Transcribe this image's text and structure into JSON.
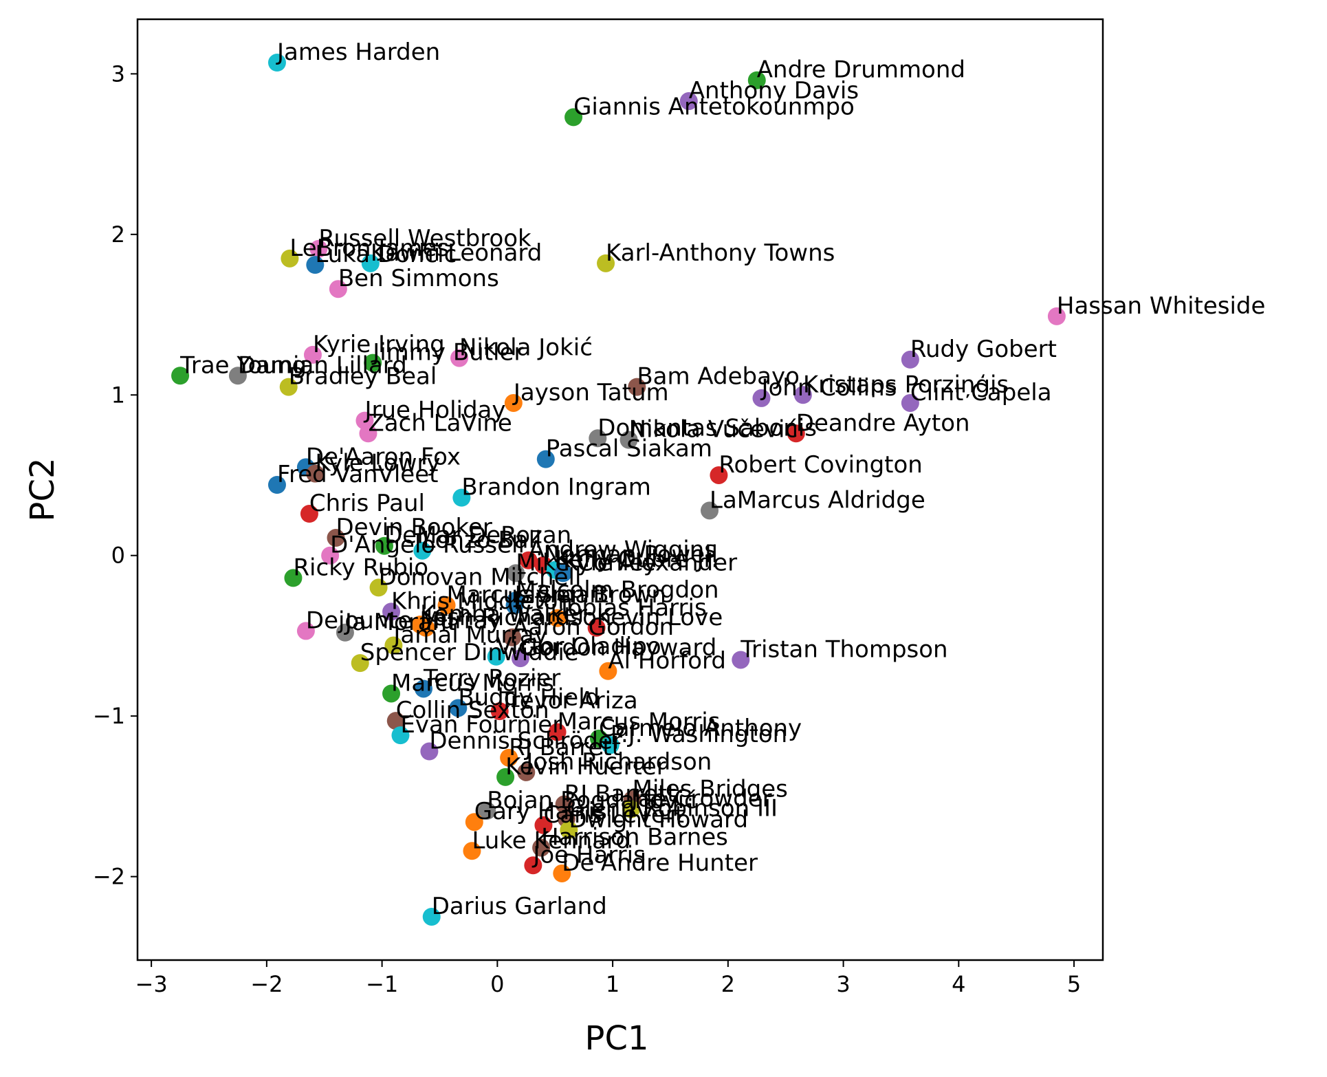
{
  "chart_data": {
    "type": "scatter",
    "xlabel": "PC1",
    "ylabel": "PC2",
    "xlim": [
      -3.12,
      5.25
    ],
    "ylim": [
      -2.52,
      3.34
    ],
    "xticks": [
      -3,
      -2,
      -1,
      0,
      1,
      2,
      3,
      4,
      5
    ],
    "yticks": [
      -2,
      -1,
      0,
      1,
      2,
      3
    ],
    "xtick_labels": [
      "−3",
      "−2",
      "−1",
      "0",
      "1",
      "2",
      "3",
      "4",
      "5"
    ],
    "ytick_labels": [
      "−2",
      "−1",
      "0",
      "1",
      "2",
      "3"
    ],
    "grid": false,
    "palette": [
      "#1f77b4",
      "#ff7f0e",
      "#2ca02c",
      "#d62728",
      "#9467bd",
      "#8c564b",
      "#e377c2",
      "#7f7f7f",
      "#bcbd22",
      "#17becf"
    ],
    "points": [
      {
        "label": "James Harden",
        "x": -1.91,
        "y": 3.07,
        "color": "#17becf"
      },
      {
        "label": "Andre Drummond",
        "x": 2.25,
        "y": 2.96,
        "color": "#2ca02c"
      },
      {
        "label": "Anthony Davis",
        "x": 1.66,
        "y": 2.83,
        "color": "#9467bd"
      },
      {
        "label": "Giannis Antetokounmpo",
        "x": 0.66,
        "y": 2.73,
        "color": "#2ca02c"
      },
      {
        "label": "Russell Westbrook",
        "x": -1.55,
        "y": 1.91,
        "color": "#e377c2"
      },
      {
        "label": "LeBron James",
        "x": -1.8,
        "y": 1.85,
        "color": "#bcbd22"
      },
      {
        "label": "Kawhi Leonard",
        "x": -1.1,
        "y": 1.82,
        "color": "#17becf"
      },
      {
        "label": "Luka Dončić",
        "x": -1.58,
        "y": 1.81,
        "color": "#1f77b4"
      },
      {
        "label": "Karl-Anthony Towns",
        "x": 0.94,
        "y": 1.82,
        "color": "#bcbd22"
      },
      {
        "label": "Ben Simmons",
        "x": -1.38,
        "y": 1.66,
        "color": "#e377c2"
      },
      {
        "label": "Hassan Whiteside",
        "x": 4.85,
        "y": 1.49,
        "color": "#e377c2"
      },
      {
        "label": "Rudy Gobert",
        "x": 3.58,
        "y": 1.22,
        "color": "#9467bd"
      },
      {
        "label": "Kyrie Irving",
        "x": -1.6,
        "y": 1.25,
        "color": "#e377c2"
      },
      {
        "label": "Nikola Jokić",
        "x": -0.33,
        "y": 1.23,
        "color": "#e377c2"
      },
      {
        "label": "Jimmy Butler",
        "x": -1.08,
        "y": 1.2,
        "color": "#2ca02c"
      },
      {
        "label": "Trae Young",
        "x": -2.75,
        "y": 1.12,
        "color": "#2ca02c"
      },
      {
        "label": "Damian Lillard",
        "x": -2.25,
        "y": 1.12,
        "color": "#7f7f7f"
      },
      {
        "label": "Bradley Beal",
        "x": -1.81,
        "y": 1.05,
        "color": "#bcbd22"
      },
      {
        "label": "Bam Adebayo",
        "x": 1.21,
        "y": 1.05,
        "color": "#8c564b"
      },
      {
        "label": "Kristaps Porziņģis",
        "x": 2.65,
        "y": 1.0,
        "color": "#9467bd"
      },
      {
        "label": "John Collins",
        "x": 2.29,
        "y": 0.98,
        "color": "#9467bd"
      },
      {
        "label": "Clint Capela",
        "x": 3.58,
        "y": 0.95,
        "color": "#9467bd"
      },
      {
        "label": "Jayson Tatum",
        "x": 0.14,
        "y": 0.95,
        "color": "#ff7f0e"
      },
      {
        "label": "Jrue Holiday",
        "x": -1.15,
        "y": 0.84,
        "color": "#e377c2"
      },
      {
        "label": "Deandre Ayton",
        "x": 2.59,
        "y": 0.76,
        "color": "#d62728"
      },
      {
        "label": "Domantas Sabonis",
        "x": 0.87,
        "y": 0.73,
        "color": "#7f7f7f"
      },
      {
        "label": "Nikola Vučević",
        "x": 1.14,
        "y": 0.72,
        "color": "#7f7f7f"
      },
      {
        "label": "Zach LaVine",
        "x": -1.12,
        "y": 0.76,
        "color": "#e377c2"
      },
      {
        "label": "Pascal Siakam",
        "x": 0.42,
        "y": 0.6,
        "color": "#1f77b4"
      },
      {
        "label": "De'Aaron Fox",
        "x": -1.66,
        "y": 0.55,
        "color": "#1f77b4"
      },
      {
        "label": "Kyle Lowry",
        "x": -1.58,
        "y": 0.51,
        "color": "#8c564b"
      },
      {
        "label": "Robert Covington",
        "x": 1.92,
        "y": 0.5,
        "color": "#d62728"
      },
      {
        "label": "Fred VanVleet",
        "x": -1.91,
        "y": 0.44,
        "color": "#1f77b4"
      },
      {
        "label": "Brandon Ingram",
        "x": -0.31,
        "y": 0.36,
        "color": "#17becf"
      },
      {
        "label": "LaMarcus Aldridge",
        "x": 1.84,
        "y": 0.28,
        "color": "#7f7f7f"
      },
      {
        "label": "Chris Paul",
        "x": -1.63,
        "y": 0.26,
        "color": "#d62728"
      },
      {
        "label": "Devin Booker",
        "x": -1.4,
        "y": 0.11,
        "color": "#8c564b"
      },
      {
        "label": "DeMar DeRozan",
        "x": -0.98,
        "y": 0.06,
        "color": "#2ca02c"
      },
      {
        "label": "D'Angelo Russell",
        "x": -1.45,
        "y": 0.0,
        "color": "#e377c2"
      },
      {
        "label": "Lonzo Ball",
        "x": -0.65,
        "y": 0.03,
        "color": "#17becf"
      },
      {
        "label": "Andrew Wiggins",
        "x": 0.27,
        "y": -0.03,
        "color": "#d62728"
      },
      {
        "label": "Norman Powell",
        "x": 0.4,
        "y": -0.06,
        "color": "#d62728"
      },
      {
        "label": "Kelly Oubre Jr.",
        "x": 0.5,
        "y": -0.09,
        "color": "#17becf"
      },
      {
        "label": "Kyle Alexander",
        "x": 0.57,
        "y": -0.11,
        "color": "#1f77b4"
      },
      {
        "label": "Ricky Rubio",
        "x": -1.77,
        "y": -0.14,
        "color": "#2ca02c"
      },
      {
        "label": "Mike Conley",
        "x": 0.16,
        "y": -0.11,
        "color": "#7f7f7f"
      },
      {
        "label": "Donovan Mitchell",
        "x": -1.03,
        "y": -0.2,
        "color": "#bcbd22"
      },
      {
        "label": "Jaylen Brown",
        "x": 0.15,
        "y": -0.31,
        "color": "#1f77b4"
      },
      {
        "label": "Malcolm Brogdon",
        "x": 0.16,
        "y": -0.28,
        "color": "#1f77b4"
      },
      {
        "label": "Marcus Smart",
        "x": -0.44,
        "y": -0.31,
        "color": "#ff7f0e"
      },
      {
        "label": "Tobias Harris",
        "x": 0.52,
        "y": -0.39,
        "color": "#ff7f0e"
      },
      {
        "label": "Khris Middleton",
        "x": -0.92,
        "y": -0.35,
        "color": "#9467bd"
      },
      {
        "label": "Kemba Walker",
        "x": -0.67,
        "y": -0.43,
        "color": "#ff7f0e"
      },
      {
        "label": "Kevin Love",
        "x": 0.86,
        "y": -0.45,
        "color": "#d62728"
      },
      {
        "label": "Dejounte Murray",
        "x": -1.66,
        "y": -0.47,
        "color": "#e377c2"
      },
      {
        "label": "Ja Morant",
        "x": -1.32,
        "y": -0.48,
        "color": "#7f7f7f"
      },
      {
        "label": "Josh Richardson",
        "x": -0.62,
        "y": -0.45,
        "color": "#ff7f0e"
      },
      {
        "label": "Aaron Gordon",
        "x": 0.13,
        "y": -0.51,
        "color": "#8c564b"
      },
      {
        "label": "Jamal Murray",
        "x": -0.9,
        "y": -0.56,
        "color": "#bcbd22"
      },
      {
        "label": "Gordon Hayward",
        "x": 0.2,
        "y": -0.64,
        "color": "#9467bd"
      },
      {
        "label": "Tristan Thompson",
        "x": 2.11,
        "y": -0.65,
        "color": "#9467bd"
      },
      {
        "label": "Spencer Dinwiddie",
        "x": -1.19,
        "y": -0.67,
        "color": "#bcbd22"
      },
      {
        "label": "Victor Oladipo",
        "x": -0.01,
        "y": -0.63,
        "color": "#17becf"
      },
      {
        "label": "Al Horford",
        "x": 0.96,
        "y": -0.72,
        "color": "#ff7f0e"
      },
      {
        "label": "Terry Rozier",
        "x": -0.64,
        "y": -0.83,
        "color": "#1f77b4"
      },
      {
        "label": "Marcus Morris",
        "x": -0.92,
        "y": -0.86,
        "color": "#2ca02c"
      },
      {
        "label": "Buddy Hield",
        "x": -0.34,
        "y": -0.95,
        "color": "#1f77b4"
      },
      {
        "label": "Trevor Ariza",
        "x": 0.02,
        "y": -0.97,
        "color": "#d62728"
      },
      {
        "label": "Collin Sexton",
        "x": -0.88,
        "y": -1.03,
        "color": "#8c564b"
      },
      {
        "label": "Marcus Morris",
        "x": 0.52,
        "y": -1.1,
        "color": "#d62728"
      },
      {
        "label": "Carmelo Anthony",
        "x": 0.88,
        "y": -1.14,
        "color": "#2ca02c"
      },
      {
        "label": "P.J. Washington",
        "x": 0.98,
        "y": -1.18,
        "color": "#17becf"
      },
      {
        "label": "Evan Fournier",
        "x": -0.84,
        "y": -1.12,
        "color": "#17becf"
      },
      {
        "label": "Dennis Schröder",
        "x": -0.59,
        "y": -1.22,
        "color": "#9467bd"
      },
      {
        "label": "RJ Barrett",
        "x": 0.1,
        "y": -1.26,
        "color": "#ff7f0e"
      },
      {
        "label": "Josh Richardson",
        "x": 0.25,
        "y": -1.35,
        "color": "#8c564b"
      },
      {
        "label": "Kevin Huerter",
        "x": 0.07,
        "y": -1.38,
        "color": "#2ca02c"
      },
      {
        "label": "Miles Bridges",
        "x": 1.17,
        "y": -1.52,
        "color": "#8c564b"
      },
      {
        "label": "Bojan Bogdanović",
        "x": -0.09,
        "y": -1.59,
        "color": "#7f7f7f"
      },
      {
        "label": "RJ Barrett",
        "x": 0.58,
        "y": -1.55,
        "color": "#8c564b"
      },
      {
        "label": "Jae Crowder",
        "x": 1.16,
        "y": -1.58,
        "color": "#bcbd22"
      },
      {
        "label": "Glenn Robinson III",
        "x": 0.6,
        "y": -1.64,
        "color": "#8c564b"
      },
      {
        "label": "Gary Harris",
        "x": -0.2,
        "y": -1.66,
        "color": "#ff7f0e"
      },
      {
        "label": "Caris LeVert",
        "x": 0.4,
        "y": -1.68,
        "color": "#d62728"
      },
      {
        "label": "Dwight Howard",
        "x": 0.62,
        "y": -1.71,
        "color": "#bcbd22"
      },
      {
        "label": "Harrison Barnes",
        "x": 0.38,
        "y": -1.82,
        "color": "#8c564b"
      },
      {
        "label": "Luke Kennard",
        "x": -0.22,
        "y": -1.84,
        "color": "#ff7f0e"
      },
      {
        "label": "Joe Harris",
        "x": 0.31,
        "y": -1.93,
        "color": "#d62728"
      },
      {
        "label": "De'Andre Hunter",
        "x": 0.56,
        "y": -1.98,
        "color": "#ff7f0e"
      },
      {
        "label": "Darius Garland",
        "x": -0.57,
        "y": -2.25,
        "color": "#17becf"
      }
    ]
  }
}
